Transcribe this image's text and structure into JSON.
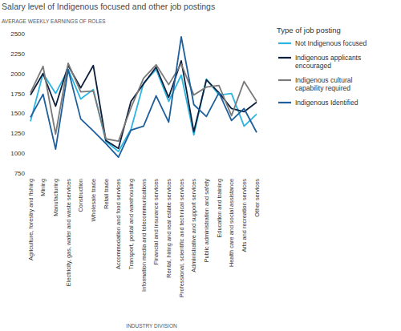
{
  "chart_data": {
    "type": "line",
    "title": "Salary level of Indigenous focused and other job postings",
    "y_label": "AVERAGE WEEKLY EARNINGS OF ROLES",
    "x_label": "INDUSTRY DIVISION",
    "legend_title": "Type of job posting",
    "legend": "right",
    "grid": false,
    "categories": [
      "Agriculture, forestry and fishing",
      "Mining",
      "Manufacturing",
      "Electricity, gas, water and waste services",
      "Construction",
      "Wholesale trade",
      "Retail trade",
      "Accommodation and food services",
      "Transport, postal and warehousing",
      "Information media and telecommunications",
      "Financial and insurance services",
      "Rental, hiring and real estate services",
      "Professional, scientific and technical services",
      "Administrative and support services",
      "Public administration and safety",
      "Education and training",
      "Health care and social assistance",
      "Arts and recreation services",
      "Other services"
    ],
    "ylim": [
      750,
      2500
    ],
    "yticks": [
      750,
      1000,
      1250,
      1500,
      1750,
      2000,
      2250,
      2500
    ],
    "series": [
      {
        "name": "Not Indigenous focused",
        "color": "#2bb5e0",
        "values": [
          1400,
          2000,
          1750,
          2050,
          1680,
          1800,
          1150,
          1020,
          1300,
          1880,
          2050,
          1650,
          1980,
          1230,
          1930,
          1730,
          1750,
          1340,
          1490
        ]
      },
      {
        "name": "Indigenous applicants encouraged",
        "color": "#0d1f3c",
        "values": [
          1730,
          2000,
          1590,
          2100,
          1820,
          2100,
          1160,
          1060,
          1650,
          1870,
          2080,
          1700,
          2160,
          1270,
          1920,
          1760,
          1560,
          1520,
          1640
        ]
      },
      {
        "name": "Indigenous cultural capability required",
        "color": "#7a7a7a",
        "values": [
          1760,
          2090,
          1240,
          2130,
          1770,
          1780,
          1180,
          1150,
          1570,
          1940,
          2110,
          1860,
          2120,
          1730,
          1830,
          1850,
          1470,
          1900,
          1650
        ]
      },
      {
        "name": "Indigenous Identified",
        "color": "#1f5f9b",
        "values": [
          1450,
          1740,
          1050,
          2050,
          1430,
          1280,
          1120,
          950,
          1290,
          1340,
          1720,
          1390,
          2460,
          1610,
          1460,
          1760,
          1410,
          1560,
          1260
        ]
      }
    ]
  }
}
